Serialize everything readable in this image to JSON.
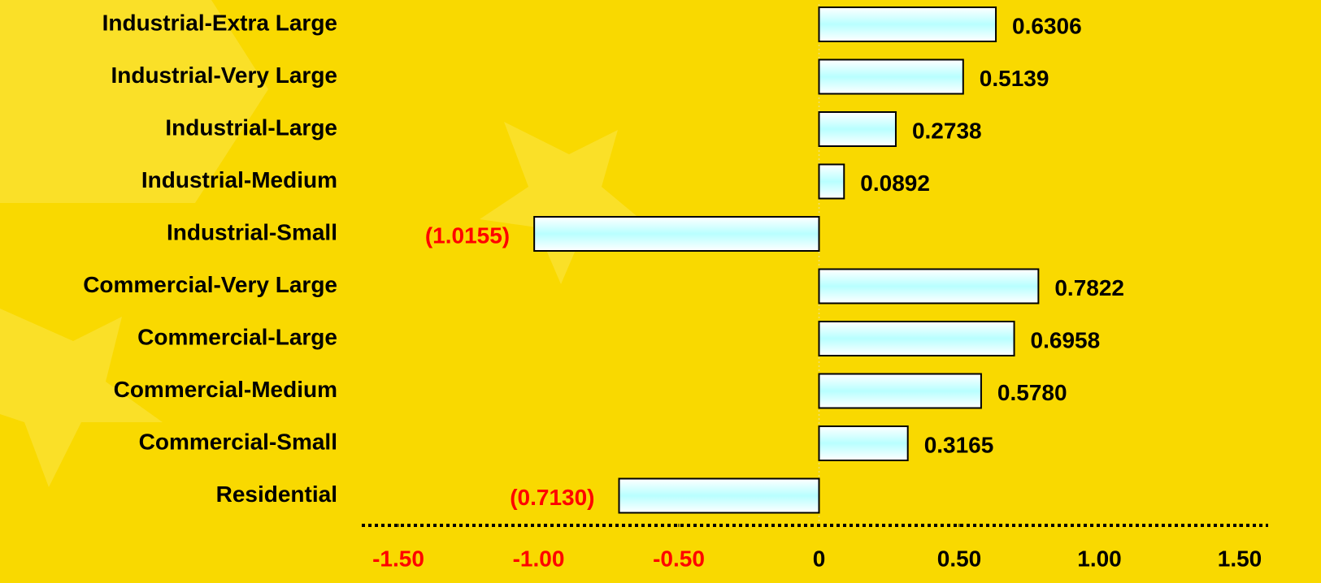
{
  "chart_data": {
    "type": "barh",
    "categories": [
      "Industrial-Extra Large",
      "Industrial-Very Large",
      "Industrial-Large",
      "Industrial-Medium",
      "Industrial-Small",
      "Commercial-Very Large",
      "Commercial-Large",
      "Commercial-Medium",
      "Commercial-Small",
      "Residential"
    ],
    "values": [
      0.6306,
      0.5139,
      0.2738,
      0.0892,
      -1.0155,
      0.7822,
      0.6958,
      0.578,
      0.3165,
      -0.713
    ],
    "value_labels": [
      "0.6306",
      "0.5139",
      "0.2738",
      "0.0892",
      "(1.0155)",
      "0.7822",
      "0.6958",
      "0.5780",
      "0.3165",
      "(0.7130)"
    ],
    "color": "#c8ffff",
    "negative_label_color": "#ff0000",
    "xlim": [
      -1.5,
      1.5
    ],
    "xticks": [
      {
        "value": -1.5,
        "label": "-1.50"
      },
      {
        "value": -1.0,
        "label": "-1.00"
      },
      {
        "value": -0.5,
        "label": "-0.50"
      },
      0,
      {
        "value": 0.5,
        "label": "0.50"
      },
      {
        "value": 1.0,
        "label": "1.00"
      },
      {
        "value": 1.5,
        "label": "1.50"
      }
    ]
  }
}
